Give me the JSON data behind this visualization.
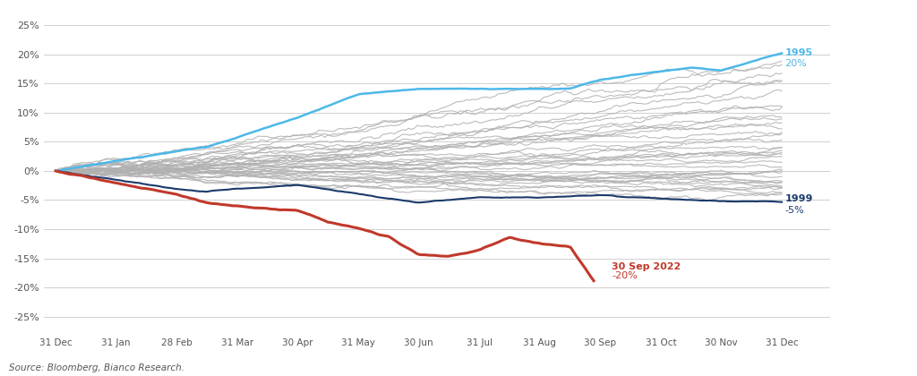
{
  "title": "",
  "source_text": "Source: Bloomberg, Bianco Research.",
  "xlabels": [
    "31 Dec",
    "31 Jan",
    "28 Feb",
    "31 Mar",
    "30 Apr",
    "31 May",
    "30 Jun",
    "31 Jul",
    "31 Aug",
    "30 Sep",
    "31 Oct",
    "30 Nov",
    "31 Dec"
  ],
  "yticks": [
    -0.25,
    -0.2,
    -0.15,
    -0.1,
    -0.05,
    0.0,
    0.05,
    0.1,
    0.15,
    0.2,
    0.25
  ],
  "ylim": [
    -0.28,
    0.27
  ],
  "gray_color": "#b0b0b0",
  "blue_color": "#4db8e8",
  "navy_color": "#1a3a6b",
  "red_color": "#c0392b",
  "background_color": "#ffffff",
  "grid_color": "#d0d0d0",
  "annotation_red_label": "30 Sep 2022",
  "annotation_red_value": "-20%",
  "annotation_blue_label": "1995",
  "annotation_blue_value": "20%",
  "annotation_navy_label": "1999",
  "annotation_navy_value": "-5%"
}
